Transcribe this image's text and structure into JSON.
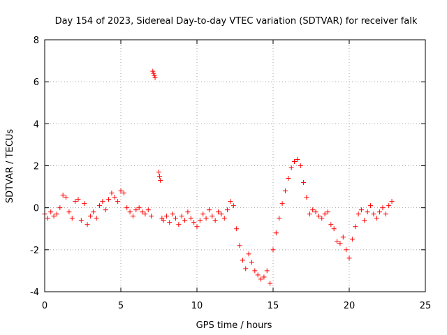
{
  "chart_data": {
    "type": "scatter",
    "title": "Day 154 of 2023, Sidereal Day-to-day VTEC variation (SDTVAR) for receiver falk",
    "xlabel": "GPS time / hours",
    "ylabel": "SDTVAR / TECUs",
    "xlim": [
      0,
      25
    ],
    "ylim": [
      -4,
      8
    ],
    "xticks": [
      "0",
      "5",
      "10",
      "15",
      "20",
      "25"
    ],
    "yticks": [
      "-4",
      "-2",
      "0",
      "2",
      "4",
      "6",
      "8"
    ],
    "grid": true,
    "marker": "+",
    "color": "#ff0000",
    "series": [
      {
        "name": "SDTVAR",
        "x": [
          0.0,
          0.2,
          0.4,
          0.6,
          0.8,
          1.0,
          1.2,
          1.4,
          1.6,
          1.8,
          2.0,
          2.2,
          2.4,
          2.6,
          2.8,
          3.0,
          3.2,
          3.4,
          3.6,
          3.8,
          4.0,
          4.2,
          4.4,
          4.6,
          4.8,
          5.0,
          5.2,
          5.4,
          5.6,
          5.8,
          6.0,
          6.2,
          6.4,
          6.6,
          6.8,
          7.0,
          7.1,
          7.15,
          7.2,
          7.25,
          7.5,
          7.55,
          7.6,
          7.7,
          7.8,
          8.0,
          8.2,
          8.4,
          8.6,
          8.8,
          9.0,
          9.2,
          9.4,
          9.6,
          9.8,
          10.0,
          10.2,
          10.4,
          10.6,
          10.8,
          11.0,
          11.2,
          11.4,
          11.6,
          11.8,
          12.0,
          12.2,
          12.4,
          12.6,
          12.8,
          13.0,
          13.2,
          13.4,
          13.6,
          13.8,
          14.0,
          14.2,
          14.4,
          14.6,
          14.8,
          15.0,
          15.2,
          15.4,
          15.6,
          15.8,
          16.0,
          16.2,
          16.4,
          16.6,
          16.8,
          17.0,
          17.2,
          17.4,
          17.6,
          17.8,
          18.0,
          18.2,
          18.4,
          18.6,
          18.8,
          19.0,
          19.2,
          19.4,
          19.6,
          19.8,
          20.0,
          20.2,
          20.4,
          20.6,
          20.8,
          21.0,
          21.2,
          21.4,
          21.6,
          21.8,
          22.0,
          22.2,
          22.4,
          22.6,
          22.8
        ],
        "y": [
          -0.3,
          -0.5,
          -0.2,
          -0.4,
          -0.3,
          0.0,
          0.6,
          0.5,
          -0.2,
          -0.5,
          0.3,
          0.4,
          -0.6,
          0.2,
          -0.8,
          -0.4,
          -0.2,
          -0.5,
          0.1,
          0.3,
          -0.1,
          0.4,
          0.7,
          0.5,
          0.3,
          0.8,
          0.7,
          0.0,
          -0.2,
          -0.4,
          -0.1,
          0.0,
          -0.2,
          -0.3,
          -0.1,
          -0.4,
          6.5,
          6.4,
          6.3,
          6.2,
          1.7,
          1.5,
          1.3,
          -0.5,
          -0.6,
          -0.4,
          -0.7,
          -0.3,
          -0.5,
          -0.8,
          -0.4,
          -0.6,
          -0.2,
          -0.5,
          -0.7,
          -0.9,
          -0.6,
          -0.3,
          -0.5,
          -0.1,
          -0.4,
          -0.6,
          -0.2,
          -0.3,
          -0.5,
          -0.1,
          0.3,
          0.1,
          -1.0,
          -1.8,
          -2.5,
          -2.9,
          -2.2,
          -2.6,
          -3.0,
          -3.2,
          -3.4,
          -3.3,
          -3.0,
          -3.6,
          -2.0,
          -1.2,
          -0.5,
          0.2,
          0.8,
          1.4,
          1.9,
          2.2,
          2.3,
          2.0,
          1.2,
          0.5,
          -0.3,
          -0.1,
          -0.2,
          -0.4,
          -0.5,
          -0.3,
          -0.2,
          -0.8,
          -1.0,
          -1.6,
          -1.7,
          -1.4,
          -2.0,
          -2.4,
          -1.5,
          -0.9,
          -0.3,
          -0.1,
          -0.6,
          -0.2,
          0.1,
          -0.3,
          -0.5,
          -0.2,
          0.0,
          -0.3,
          0.1,
          0.3
        ]
      }
    ]
  }
}
